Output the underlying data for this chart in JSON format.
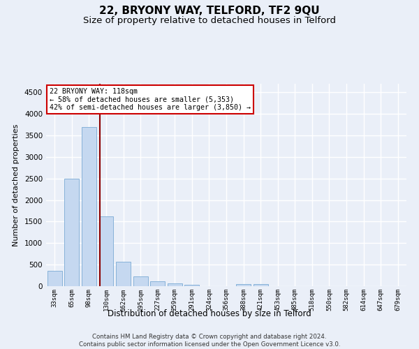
{
  "title": "22, BRYONY WAY, TELFORD, TF2 9QU",
  "subtitle": "Size of property relative to detached houses in Telford",
  "xlabel": "Distribution of detached houses by size in Telford",
  "ylabel": "Number of detached properties",
  "footer_line1": "Contains HM Land Registry data © Crown copyright and database right 2024.",
  "footer_line2": "Contains public sector information licensed under the Open Government Licence v3.0.",
  "categories": [
    "33sqm",
    "65sqm",
    "98sqm",
    "130sqm",
    "162sqm",
    "195sqm",
    "227sqm",
    "259sqm",
    "291sqm",
    "324sqm",
    "356sqm",
    "388sqm",
    "421sqm",
    "453sqm",
    "485sqm",
    "518sqm",
    "550sqm",
    "582sqm",
    "614sqm",
    "647sqm",
    "679sqm"
  ],
  "values": [
    350,
    2500,
    3700,
    1625,
    575,
    230,
    115,
    65,
    35,
    0,
    0,
    50,
    50,
    0,
    0,
    0,
    0,
    0,
    0,
    0,
    0
  ],
  "bar_color": "#c5d8f0",
  "bar_edge_color": "#7aaad4",
  "vline_color": "#8b0000",
  "annotation_line1": "22 BRYONY WAY: 118sqm",
  "annotation_line2": "← 58% of detached houses are smaller (5,353)",
  "annotation_line3": "42% of semi-detached houses are larger (3,850) →",
  "annotation_box_color": "#ffffff",
  "annotation_box_edge": "#cc0000",
  "ylim": [
    0,
    4700
  ],
  "yticks": [
    0,
    500,
    1000,
    1500,
    2000,
    2500,
    3000,
    3500,
    4000,
    4500
  ],
  "bg_color": "#eaeff8",
  "plot_bg_color": "#eaeff8",
  "grid_color": "#ffffff",
  "title_fontsize": 11,
  "subtitle_fontsize": 9.5
}
